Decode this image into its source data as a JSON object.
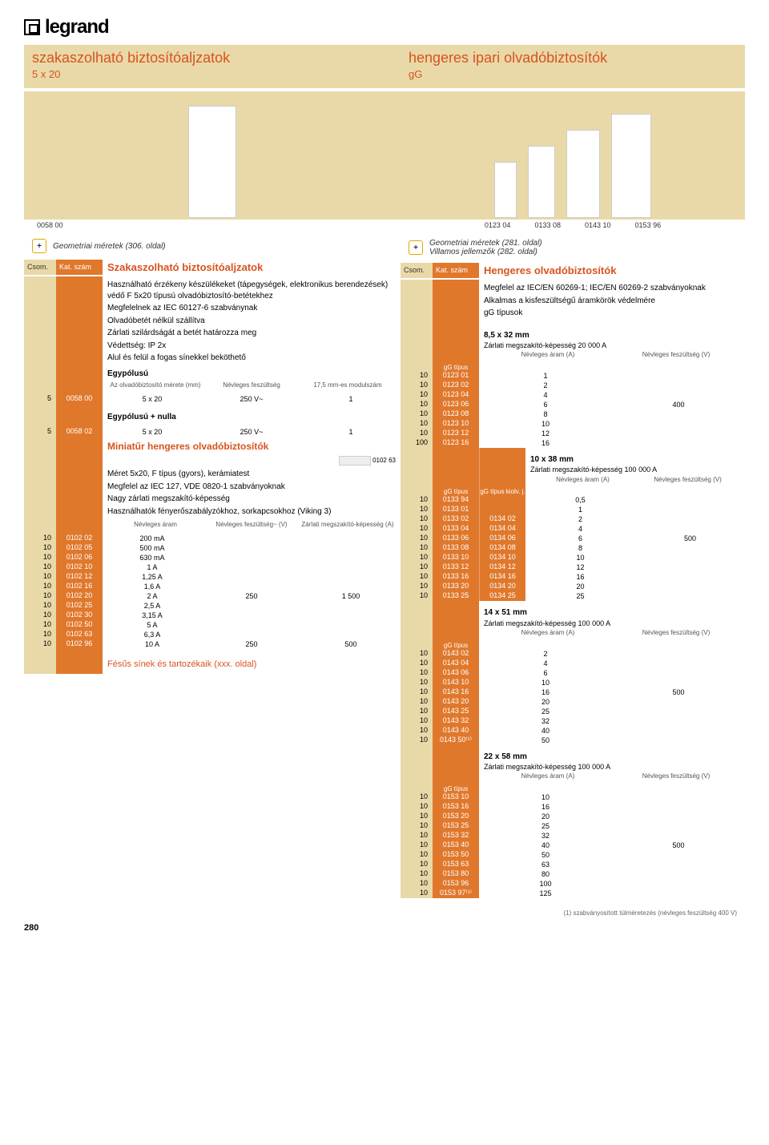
{
  "logo_text": "legrand",
  "left": {
    "title": "szakaszolható biztosítóaljzatok",
    "subtitle": "5 x 20",
    "image_caption": "0058 00",
    "meta": "Geometriai méretek (306. oldal)",
    "head_csom": "Csom.",
    "head_kat": "Kat. szám",
    "head_title": "Szakaszolható biztosítóaljzatok",
    "desc": [
      "Használható érzékeny készülékeket (tápegységek, elektronikus berendezések) védő F 5x20 típusú olvadóbiztosító-betétekhez",
      "Megfelelnek az IEC 60127-6 szabványnak",
      "Olvadóbetét nélkül szállítva",
      "Zárlati szilárdságát a betét határozza meg",
      "Védettség: IP 2x",
      "Alul és felül a fogas sínekkel beköthető"
    ],
    "egypol": "Egypólusú",
    "spec_head": {
      "a": "Az olvadóbiztosító mérete (mm)",
      "b": "Névleges feszültség",
      "c": "17,5 mm-es modulszám"
    },
    "row1": {
      "csom": "5",
      "kat": "0058 00",
      "a": "5 x 20",
      "b": "250 V~",
      "c": "1"
    },
    "egypol_nulla": "Egypólusú + nulla",
    "row2": {
      "csom": "5",
      "kat": "0058 02",
      "a": "5 x 20",
      "b": "250 V~",
      "c": "1"
    },
    "mini_title": "Miniatűr hengeres olvadóbiztosítók",
    "mini_img_caption": "0102 63",
    "mini_desc": [
      "Méret 5x20, F típus (gyors), kerámiatest",
      "Megfelel az IEC 127, VDE 0820-1 szabványoknak",
      "Nagy zárlati megszakító-képesség",
      "Használhatók fényerőszabályzókhoz, sorkapcsokhoz (Viking 3)"
    ],
    "mini_head": {
      "a": "Névleges áram",
      "b": "Névleges feszültség~ (V)",
      "c": "Zárlati megszakító-képesség (A)"
    },
    "mini_rows": [
      {
        "csom": "10",
        "kat": "0102 02",
        "a": "200 mA",
        "b": "",
        "c": ""
      },
      {
        "csom": "10",
        "kat": "0102 05",
        "a": "500 mA",
        "b": "",
        "c": ""
      },
      {
        "csom": "10",
        "kat": "0102 06",
        "a": "630 mA",
        "b": "",
        "c": ""
      },
      {
        "csom": "10",
        "kat": "0102 10",
        "a": "1 A",
        "b": "",
        "c": ""
      },
      {
        "csom": "10",
        "kat": "0102 12",
        "a": "1,25 A",
        "b": "",
        "c": ""
      },
      {
        "csom": "10",
        "kat": "0102 16",
        "a": "1,6 A",
        "b": "",
        "c": ""
      },
      {
        "csom": "10",
        "kat": "0102 20",
        "a": "2 A",
        "b": "250",
        "c": "1 500"
      },
      {
        "csom": "10",
        "kat": "0102 25",
        "a": "2,5 A",
        "b": "",
        "c": ""
      },
      {
        "csom": "10",
        "kat": "0102 30",
        "a": "3,15 A",
        "b": "",
        "c": ""
      },
      {
        "csom": "10",
        "kat": "0102 50",
        "a": "5 A",
        "b": "",
        "c": ""
      },
      {
        "csom": "10",
        "kat": "0102 63",
        "a": "6,3 A",
        "b": "",
        "c": ""
      },
      {
        "csom": "10",
        "kat": "0102 96",
        "a": "10 A",
        "b": "250",
        "c": "500"
      }
    ],
    "link": "Fésűs sínek és tartozékaik (xxx. oldal)"
  },
  "right": {
    "title": "hengeres ipari olvadóbiztosítók",
    "subtitle": "gG",
    "image_captions": [
      "0123 04",
      "0133 08",
      "0143 10",
      "0153 96"
    ],
    "meta1": "Geometriai méretek (281. oldal)",
    "meta2": "Villamos jellemzők (282. oldal)",
    "head_csom": "Csom.",
    "head_kat": "Kat. szám",
    "head_title": "Hengeres olvadóbiztosítók",
    "desc": [
      "Megfelel az IEC/EN 60269-1; IEC/EN 60269-2 szabványoknak",
      "Alkalmas a kisfeszültségű áramkörök védelmére",
      "gG típusok"
    ],
    "groups": [
      {
        "title": "8,5 x 32 mm",
        "sub": "Zárlati megszakító-képesség 20 000 A",
        "head_left": "gG típus",
        "head_a": "Névleges áram (A)",
        "head_v": "Névleges feszültség (V)",
        "rows": [
          {
            "csom": "10",
            "kat": "0123 01",
            "a": "1",
            "v": ""
          },
          {
            "csom": "10",
            "kat": "0123 02",
            "a": "2",
            "v": ""
          },
          {
            "csom": "10",
            "kat": "0123 04",
            "a": "4",
            "v": ""
          },
          {
            "csom": "10",
            "kat": "0123 06",
            "a": "6",
            "v": "400"
          },
          {
            "csom": "10",
            "kat": "0123 08",
            "a": "8",
            "v": ""
          },
          {
            "csom": "10",
            "kat": "0123 10",
            "a": "10",
            "v": ""
          },
          {
            "csom": "10",
            "kat": "0123 12",
            "a": "12",
            "v": ""
          },
          {
            "csom": "100",
            "kat": "0123 16",
            "a": "16",
            "v": ""
          }
        ]
      },
      {
        "title": "10 x 38 mm",
        "sub": "Zárlati megszakító-képesség 100 000 A",
        "head_left": "gG típus",
        "head_left2": "gG típus kiolv. j.",
        "head_a": "Névleges áram (A)",
        "head_v": "Névleges feszültség (V)",
        "rows": [
          {
            "csom": "10",
            "kat": "0133 94",
            "kat2": "",
            "a": "0,5",
            "v": ""
          },
          {
            "csom": "10",
            "kat": "0133 01",
            "kat2": "",
            "a": "1",
            "v": ""
          },
          {
            "csom": "10",
            "kat": "0133 02",
            "kat2": "0134 02",
            "a": "2",
            "v": ""
          },
          {
            "csom": "10",
            "kat": "0133 04",
            "kat2": "0134 04",
            "a": "4",
            "v": ""
          },
          {
            "csom": "10",
            "kat": "0133 06",
            "kat2": "0134 06",
            "a": "6",
            "v": "500"
          },
          {
            "csom": "10",
            "kat": "0133 08",
            "kat2": "0134 08",
            "a": "8",
            "v": ""
          },
          {
            "csom": "10",
            "kat": "0133 10",
            "kat2": "0134 10",
            "a": "10",
            "v": ""
          },
          {
            "csom": "10",
            "kat": "0133 12",
            "kat2": "0134 12",
            "a": "12",
            "v": ""
          },
          {
            "csom": "10",
            "kat": "0133 16",
            "kat2": "0134 16",
            "a": "16",
            "v": ""
          },
          {
            "csom": "10",
            "kat": "0133 20",
            "kat2": "0134 20",
            "a": "20",
            "v": ""
          },
          {
            "csom": "10",
            "kat": "0133 25",
            "kat2": "0134 25",
            "a": "25",
            "v": ""
          }
        ]
      },
      {
        "title": "14 x 51 mm",
        "sub": "Zárlati megszakító-képesség 100 000 A",
        "head_left": "gG típus",
        "head_a": "Névleges áram (A)",
        "head_v": "Névleges feszültség (V)",
        "rows": [
          {
            "csom": "10",
            "kat": "0143 02",
            "a": "2",
            "v": ""
          },
          {
            "csom": "10",
            "kat": "0143 04",
            "a": "4",
            "v": ""
          },
          {
            "csom": "10",
            "kat": "0143 06",
            "a": "6",
            "v": ""
          },
          {
            "csom": "10",
            "kat": "0143 10",
            "a": "10",
            "v": ""
          },
          {
            "csom": "10",
            "kat": "0143 16",
            "a": "16",
            "v": "500"
          },
          {
            "csom": "10",
            "kat": "0143 20",
            "a": "20",
            "v": ""
          },
          {
            "csom": "10",
            "kat": "0143 25",
            "a": "25",
            "v": ""
          },
          {
            "csom": "10",
            "kat": "0143 32",
            "a": "32",
            "v": ""
          },
          {
            "csom": "10",
            "kat": "0143 40",
            "a": "40",
            "v": ""
          },
          {
            "csom": "10",
            "kat": "0143 50⁽¹⁾",
            "a": "50",
            "v": ""
          }
        ]
      },
      {
        "title": "22 x 58 mm",
        "sub": "Zárlati megszakító-képesség 100 000 A",
        "head_left": "gG típus",
        "head_a": "Névleges áram (A)",
        "head_v": "Névleges feszültség (V)",
        "rows": [
          {
            "csom": "10",
            "kat": "0153 10",
            "a": "10",
            "v": ""
          },
          {
            "csom": "10",
            "kat": "0153 16",
            "a": "16",
            "v": ""
          },
          {
            "csom": "10",
            "kat": "0153 20",
            "a": "20",
            "v": ""
          },
          {
            "csom": "10",
            "kat": "0153 25",
            "a": "25",
            "v": ""
          },
          {
            "csom": "10",
            "kat": "0153 32",
            "a": "32",
            "v": ""
          },
          {
            "csom": "10",
            "kat": "0153 40",
            "a": "40",
            "v": "500"
          },
          {
            "csom": "10",
            "kat": "0153 50",
            "a": "50",
            "v": ""
          },
          {
            "csom": "10",
            "kat": "0153 63",
            "a": "63",
            "v": ""
          },
          {
            "csom": "10",
            "kat": "0153 80",
            "a": "80",
            "v": ""
          },
          {
            "csom": "10",
            "kat": "0153 96",
            "a": "100",
            "v": ""
          },
          {
            "csom": "10",
            "kat": "0153 97⁽¹⁾",
            "a": "125",
            "v": ""
          }
        ]
      }
    ]
  },
  "footnote": "(1) szabványosított túlméretezés (névleges feszültség 400 V)",
  "pagenum": "280"
}
